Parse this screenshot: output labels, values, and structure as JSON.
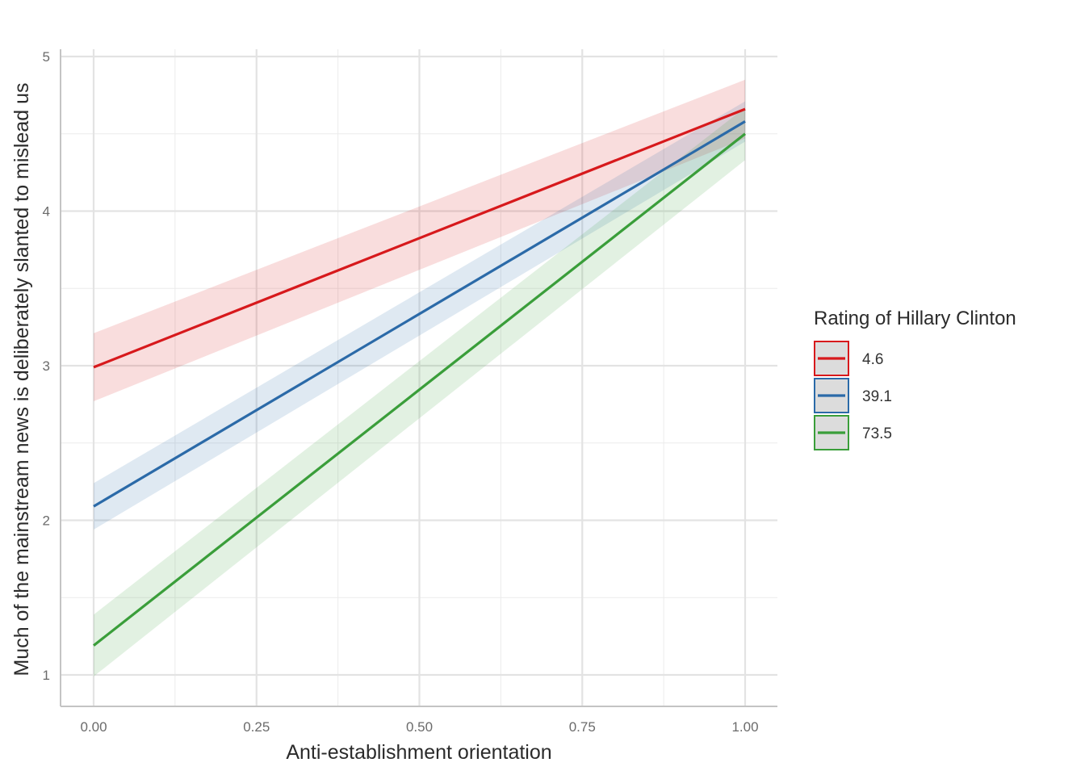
{
  "chart_data": {
    "type": "line",
    "xlabel": "Anti-establishment orientation",
    "ylabel": "Much of the mainstream news is deliberately slanted to mislead us",
    "xlim": [
      -0.05,
      1.05
    ],
    "ylim": [
      0.8,
      5.0
    ],
    "x_ticks": [
      "0.00",
      "0.25",
      "0.50",
      "0.75",
      "1.00"
    ],
    "x_tick_values": [
      0,
      0.25,
      0.5,
      0.75,
      1.0
    ],
    "y_ticks": [
      "1",
      "2",
      "3",
      "4",
      "5"
    ],
    "y_tick_values": [
      1,
      2,
      3,
      4,
      5
    ],
    "grid": true,
    "legend": {
      "title": "Rating of Hillary Clinton",
      "position": "right"
    },
    "series": [
      {
        "name": "4.6",
        "color": "#d7191c",
        "x": [
          0,
          1
        ],
        "y": [
          2.99,
          4.66
        ],
        "lower": [
          2.77,
          4.47
        ],
        "upper": [
          3.21,
          4.85
        ]
      },
      {
        "name": "39.1",
        "color": "#2b6aa8",
        "x": [
          0,
          1
        ],
        "y": [
          2.09,
          4.58
        ],
        "lower": [
          1.94,
          4.45
        ],
        "upper": [
          2.24,
          4.71
        ]
      },
      {
        "name": "73.5",
        "color": "#3a9e3a",
        "x": [
          0,
          1
        ],
        "y": [
          1.19,
          4.5
        ],
        "lower": [
          0.99,
          4.33
        ],
        "upper": [
          1.39,
          4.67
        ]
      }
    ]
  }
}
